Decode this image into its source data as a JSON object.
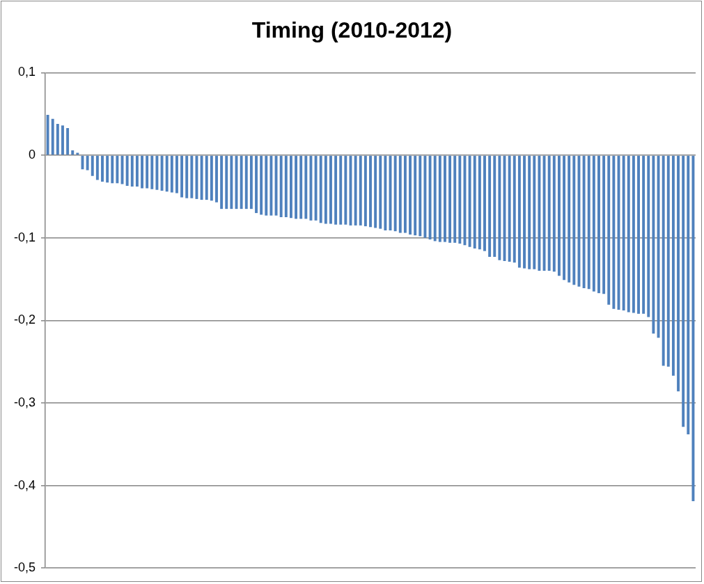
{
  "chart_data": {
    "type": "bar",
    "title": "Timing (2010-2012)",
    "categories": [
      null,
      null,
      null,
      null,
      null,
      null,
      null,
      null,
      null,
      null,
      null,
      null,
      null,
      null,
      null,
      null,
      null,
      null,
      null,
      null,
      null,
      null,
      null,
      null,
      null,
      null,
      null,
      null,
      null,
      null,
      null,
      null,
      null,
      null,
      null,
      null,
      null,
      null,
      null,
      null,
      null,
      null,
      null,
      null,
      null,
      null,
      null,
      null,
      null,
      null,
      null,
      null,
      null,
      null,
      null,
      null,
      null,
      null,
      null,
      null,
      null,
      null,
      null,
      null,
      null,
      null,
      null,
      null,
      null,
      null,
      null,
      null,
      null,
      null,
      null,
      null,
      null,
      null,
      null,
      null,
      null,
      null,
      null,
      null,
      null,
      null,
      null,
      null,
      null,
      null,
      null,
      null,
      null,
      null,
      null,
      null,
      null,
      null,
      null,
      null,
      null,
      null,
      null,
      null,
      null,
      null,
      null,
      null,
      null,
      null,
      null,
      null,
      null,
      null,
      null,
      null,
      null,
      null,
      null,
      null,
      null,
      null,
      null,
      null,
      null,
      null,
      null,
      null,
      null,
      null,
      null
    ],
    "values": [
      0.049,
      0.044,
      0.038,
      0.036,
      0.033,
      0.006,
      0.003,
      -0.017,
      -0.018,
      -0.025,
      -0.03,
      -0.032,
      -0.033,
      -0.034,
      -0.034,
      -0.035,
      -0.037,
      -0.038,
      -0.038,
      -0.04,
      -0.04,
      -0.041,
      -0.042,
      -0.043,
      -0.044,
      -0.045,
      -0.046,
      -0.051,
      -0.052,
      -0.052,
      -0.053,
      -0.054,
      -0.054,
      -0.055,
      -0.057,
      -0.065,
      -0.065,
      -0.065,
      -0.065,
      -0.065,
      -0.065,
      -0.065,
      -0.07,
      -0.072,
      -0.073,
      -0.073,
      -0.073,
      -0.075,
      -0.075,
      -0.076,
      -0.077,
      -0.077,
      -0.077,
      -0.079,
      -0.079,
      -0.082,
      -0.083,
      -0.083,
      -0.084,
      -0.084,
      -0.084,
      -0.085,
      -0.085,
      -0.085,
      -0.086,
      -0.087,
      -0.088,
      -0.089,
      -0.091,
      -0.091,
      -0.092,
      -0.094,
      -0.094,
      -0.096,
      -0.097,
      -0.098,
      -0.1,
      -0.102,
      -0.104,
      -0.105,
      -0.105,
      -0.106,
      -0.106,
      -0.107,
      -0.109,
      -0.111,
      -0.113,
      -0.114,
      -0.116,
      -0.123,
      -0.123,
      -0.127,
      -0.128,
      -0.129,
      -0.13,
      -0.136,
      -0.137,
      -0.138,
      -0.138,
      -0.14,
      -0.14,
      -0.14,
      -0.141,
      -0.146,
      -0.151,
      -0.154,
      -0.157,
      -0.159,
      -0.161,
      -0.162,
      -0.165,
      -0.167,
      -0.168,
      -0.181,
      -0.186,
      -0.187,
      -0.188,
      -0.19,
      -0.191,
      -0.192,
      -0.192,
      -0.196,
      -0.216,
      -0.221,
      -0.255,
      -0.256,
      -0.267,
      -0.286,
      -0.329,
      -0.338,
      -0.419
    ],
    "color": "#4f81bd",
    "ylim": [
      -0.5,
      0.1
    ],
    "yticks": [
      {
        "value": 0.1,
        "label": "0,1"
      },
      {
        "value": 0,
        "label": "0"
      },
      {
        "value": -0.1,
        "label": "-0,1"
      },
      {
        "value": -0.2,
        "label": "-0,2"
      },
      {
        "value": -0.3,
        "label": "-0,3"
      },
      {
        "value": -0.4,
        "label": "-0,4"
      },
      {
        "value": -0.5,
        "label": "-0,5"
      }
    ],
    "grid": "y",
    "tick_labels": "y"
  }
}
